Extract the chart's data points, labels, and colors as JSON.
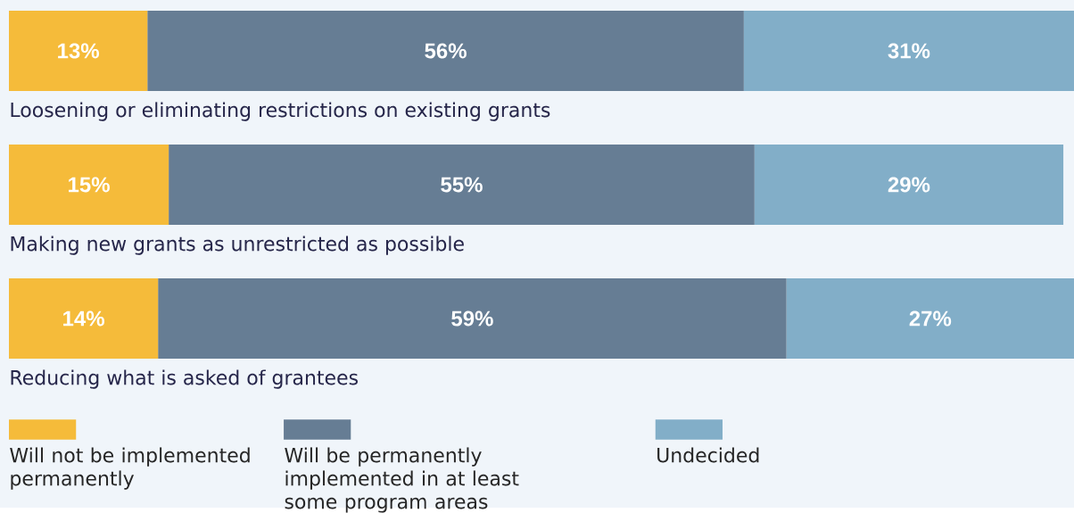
{
  "chart_data": {
    "type": "bar",
    "orientation": "horizontal",
    "stacked": true,
    "legend": "bottom",
    "categories": [
      "Loosening or eliminating restrictions on existing grants",
      "Making new grants as unrestricted as possible",
      "Reducing what is asked of grantees"
    ],
    "series": [
      {
        "name": "Will not be implemented permanently",
        "color": "#f5bb3a",
        "values": [
          13,
          15,
          14
        ],
        "value_labels": [
          "13%",
          "15%",
          "14%"
        ]
      },
      {
        "name": "Will be permanently implemented in at least some program areas",
        "color": "#667d94",
        "values": [
          56,
          55,
          59
        ],
        "value_labels": [
          "56%",
          "55%",
          "59%"
        ]
      },
      {
        "name": "Undecided",
        "color": "#82aec8",
        "values": [
          31,
          29,
          27
        ],
        "value_labels": [
          "31%",
          "29%",
          "27%"
        ]
      }
    ]
  }
}
